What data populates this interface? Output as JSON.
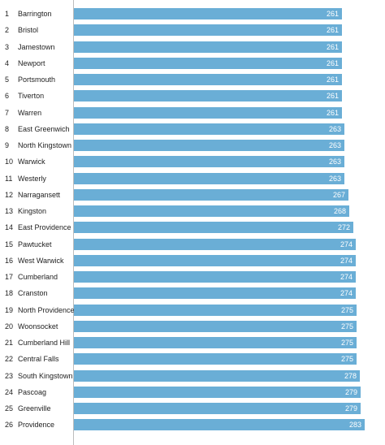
{
  "colors": {
    "bar": "#6aaed6",
    "bar_label": "#ffffff",
    "axis": "#bdbdbd"
  },
  "chart_data": {
    "type": "bar",
    "orientation": "horizontal",
    "title": "",
    "xlabel": "",
    "ylabel": "",
    "xlim": [
      0,
      283
    ],
    "grid": false,
    "ranks": [
      1,
      2,
      3,
      4,
      5,
      6,
      7,
      8,
      9,
      10,
      11,
      12,
      13,
      14,
      15,
      16,
      17,
      18,
      19,
      20,
      21,
      22,
      23,
      24,
      25,
      26
    ],
    "categories": [
      "Barrington",
      "Bristol",
      "Jamestown",
      "Newport",
      "Portsmouth",
      "Tiverton",
      "Warren",
      "East Greenwich",
      "North Kingstown",
      "Warwick",
      "Westerly",
      "Narragansett",
      "Kingston",
      "East Providence",
      "Pawtucket",
      "West Warwick",
      "Cumberland",
      "Cranston",
      "North Providence",
      "Woonsocket",
      "Cumberland Hill",
      "Central Falls",
      "South Kingstown",
      "Pascoag",
      "Greenville",
      "Providence"
    ],
    "values": [
      261,
      261,
      261,
      261,
      261,
      261,
      261,
      263,
      263,
      263,
      263,
      267,
      268,
      272,
      274,
      274,
      274,
      274,
      275,
      275,
      275,
      275,
      278,
      279,
      279,
      283
    ]
  }
}
